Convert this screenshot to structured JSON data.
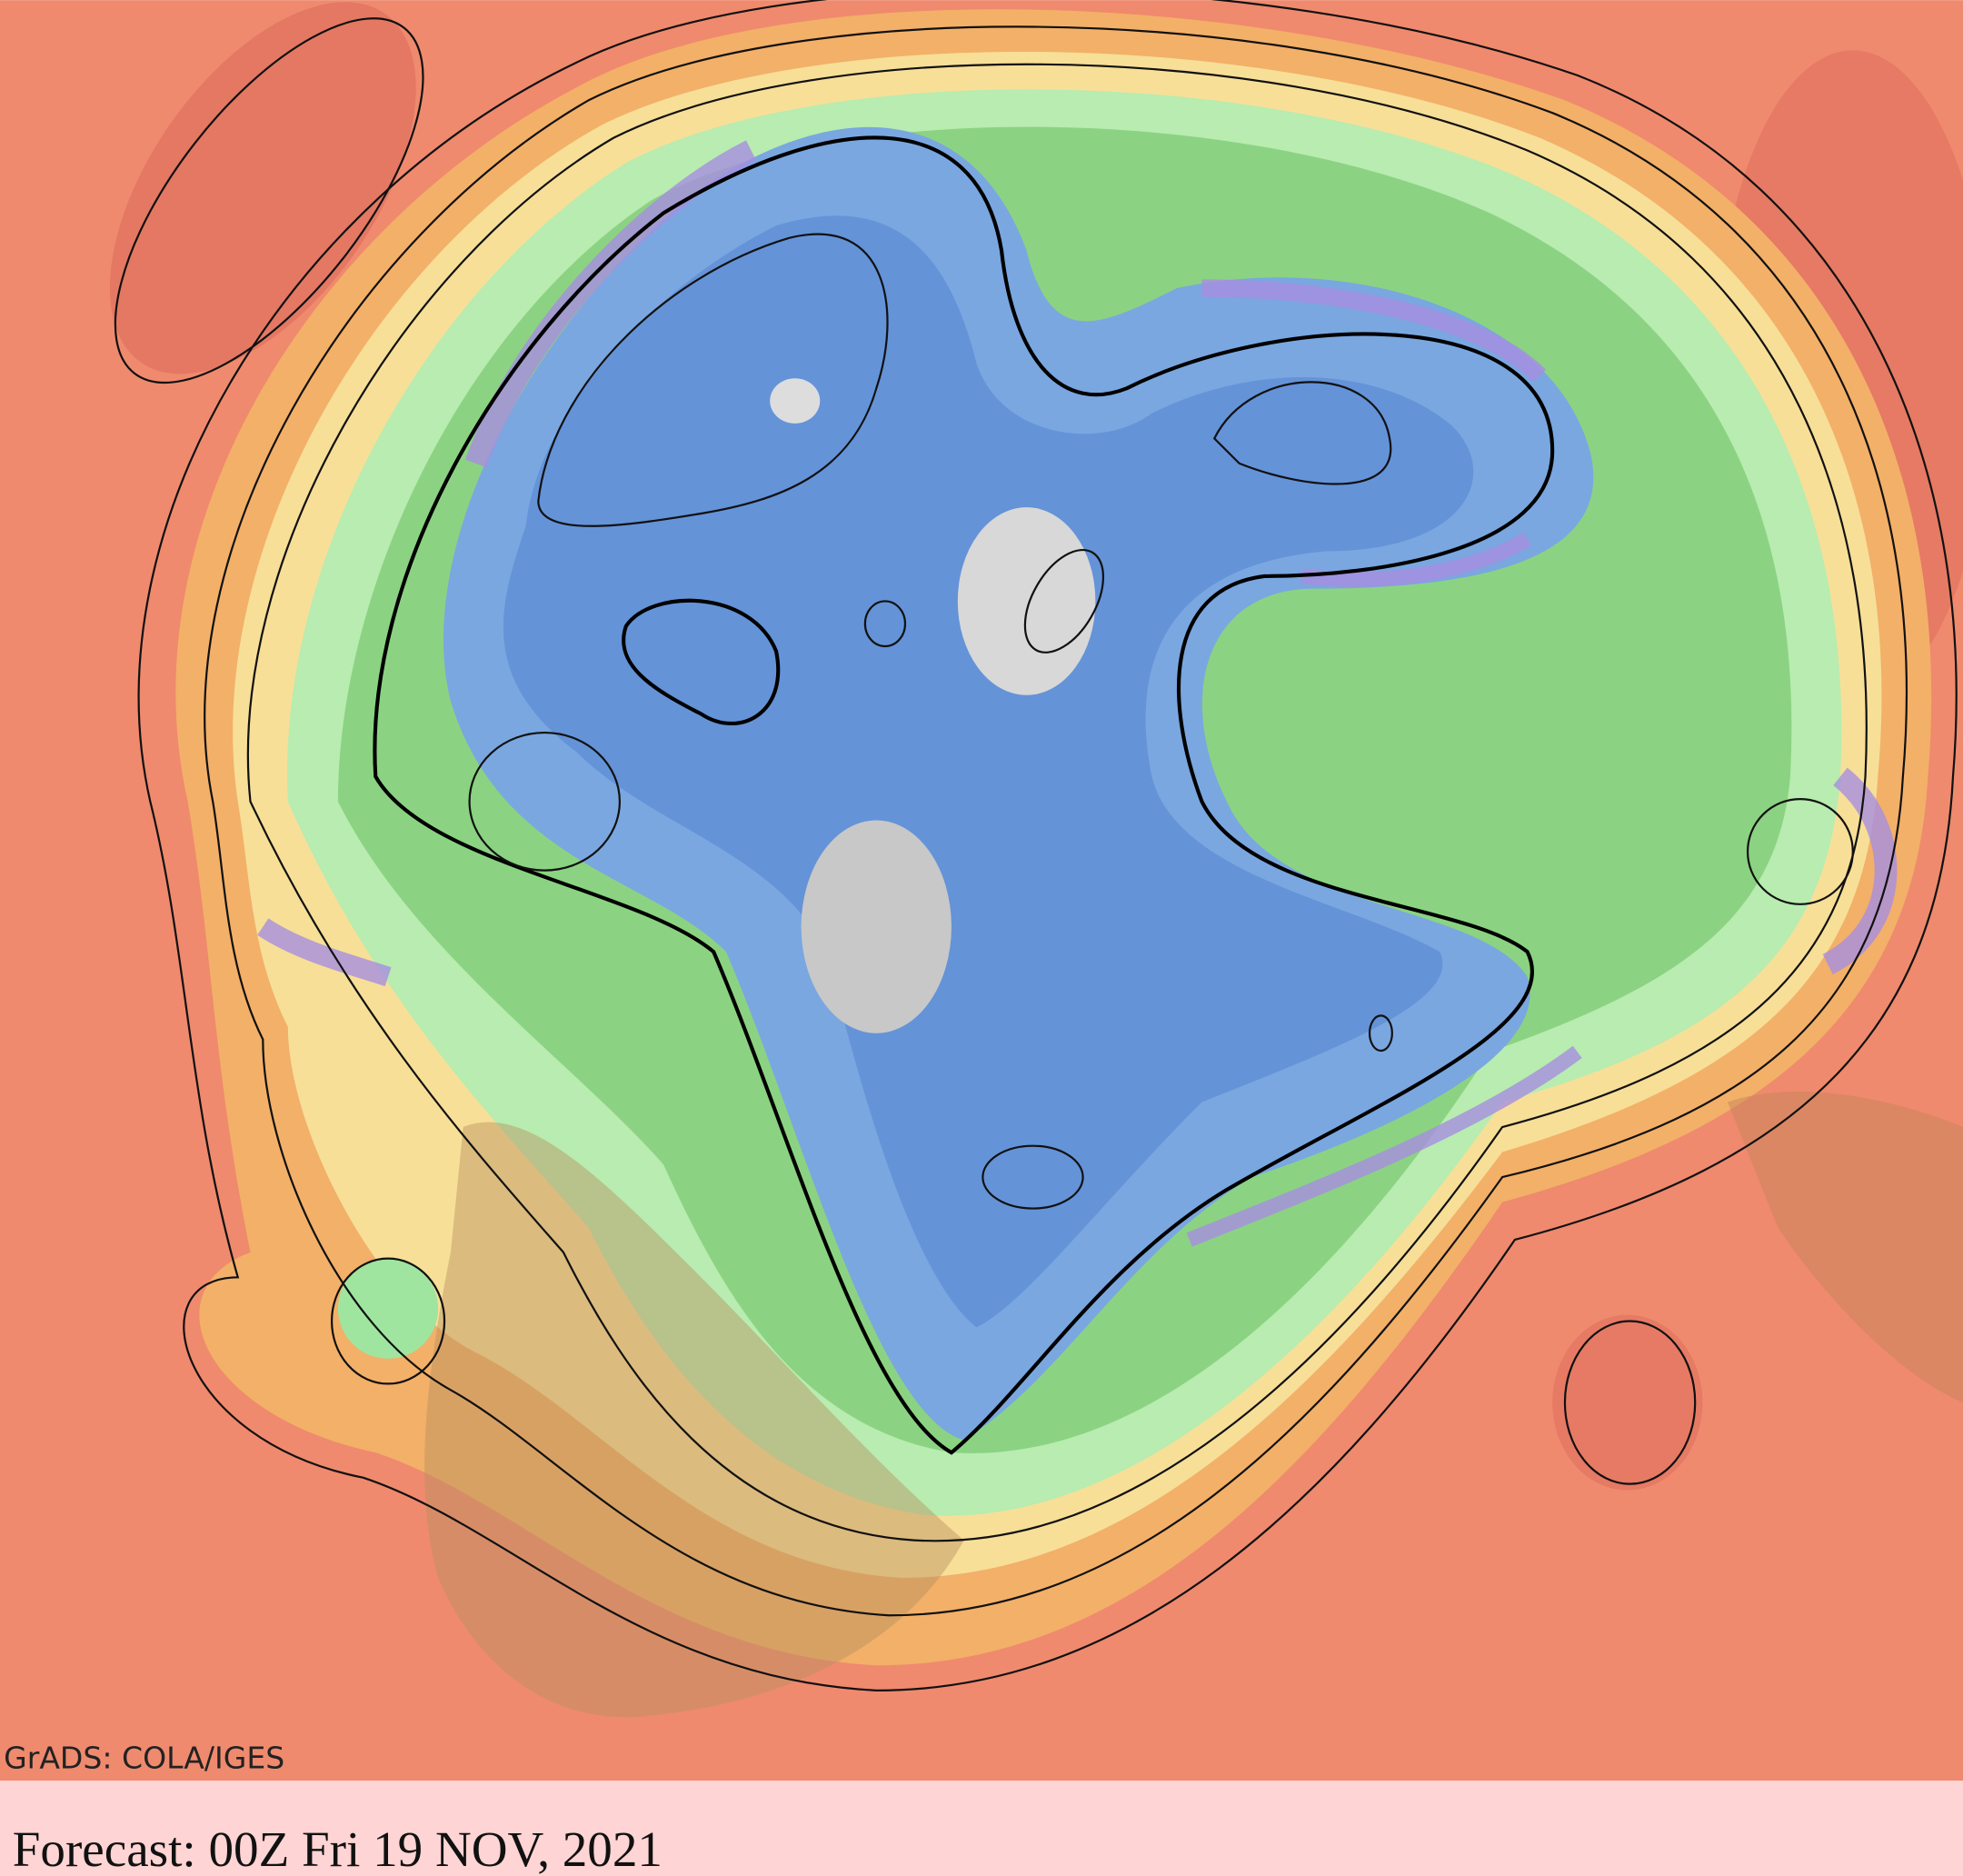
{
  "map": {
    "credit": "GrADS: COLA/IGES",
    "forecast": "Forecast: 00Z Fri 19 NOV, 2021"
  }
}
